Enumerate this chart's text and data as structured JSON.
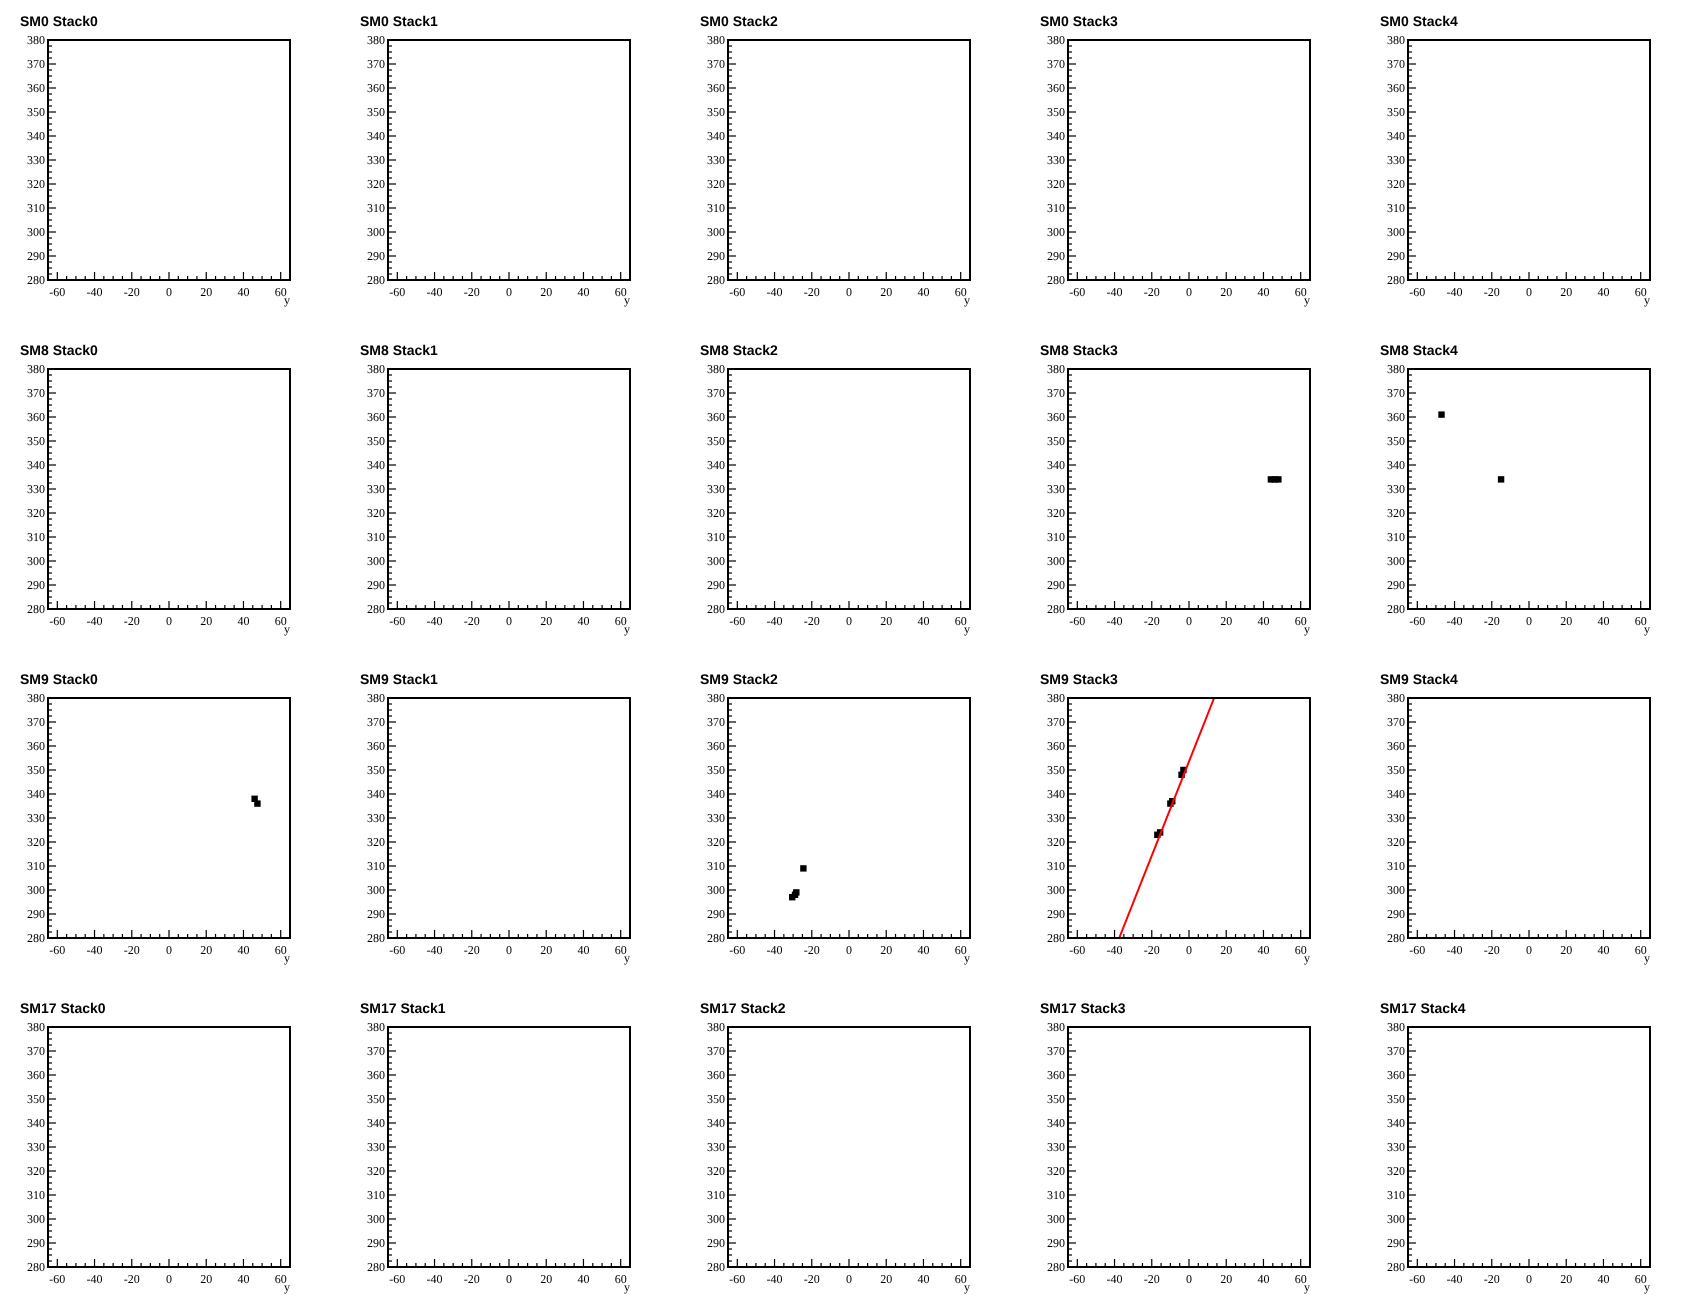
{
  "chart_data": [
    {
      "type": "scatter",
      "title": "SM0 Stack0",
      "xlabel": "y",
      "xlim": [
        -65,
        65
      ],
      "xticks": [
        -60,
        -40,
        -20,
        0,
        20,
        40,
        60
      ],
      "ylim": [
        280,
        380
      ],
      "yticks": [
        280,
        290,
        300,
        310,
        320,
        330,
        340,
        350,
        360,
        370,
        380
      ]
    },
    {
      "type": "scatter",
      "title": "SM0 Stack1",
      "xlabel": "y",
      "xlim": [
        -65,
        65
      ],
      "xticks": [
        -60,
        -40,
        -20,
        0,
        20,
        40,
        60
      ],
      "ylim": [
        280,
        380
      ],
      "yticks": [
        280,
        290,
        300,
        310,
        320,
        330,
        340,
        350,
        360,
        370,
        380
      ]
    },
    {
      "type": "scatter",
      "title": "SM0 Stack2",
      "xlabel": "y",
      "xlim": [
        -65,
        65
      ],
      "xticks": [
        -60,
        -40,
        -20,
        0,
        20,
        40,
        60
      ],
      "ylim": [
        280,
        380
      ],
      "yticks": [
        280,
        290,
        300,
        310,
        320,
        330,
        340,
        350,
        360,
        370,
        380
      ]
    },
    {
      "type": "scatter",
      "title": "SM0 Stack3",
      "xlabel": "y",
      "xlim": [
        -65,
        65
      ],
      "xticks": [
        -60,
        -40,
        -20,
        0,
        20,
        40,
        60
      ],
      "ylim": [
        280,
        380
      ],
      "yticks": [
        280,
        290,
        300,
        310,
        320,
        330,
        340,
        350,
        360,
        370,
        380
      ]
    },
    {
      "type": "scatter",
      "title": "SM0 Stack4",
      "xlabel": "y",
      "xlim": [
        -65,
        65
      ],
      "xticks": [
        -60,
        -40,
        -20,
        0,
        20,
        40,
        60
      ],
      "ylim": [
        280,
        380
      ],
      "yticks": [
        280,
        290,
        300,
        310,
        320,
        330,
        340,
        350,
        360,
        370,
        380
      ]
    },
    {
      "type": "scatter",
      "title": "SM8 Stack0",
      "xlabel": "y",
      "xlim": [
        -65,
        65
      ],
      "xticks": [
        -60,
        -40,
        -20,
        0,
        20,
        40,
        60
      ],
      "ylim": [
        280,
        380
      ],
      "yticks": [
        280,
        290,
        300,
        310,
        320,
        330,
        340,
        350,
        360,
        370,
        380
      ]
    },
    {
      "type": "scatter",
      "title": "SM8 Stack1",
      "xlabel": "y",
      "xlim": [
        -65,
        65
      ],
      "xticks": [
        -60,
        -40,
        -20,
        0,
        20,
        40,
        60
      ],
      "ylim": [
        280,
        380
      ],
      "yticks": [
        280,
        290,
        300,
        310,
        320,
        330,
        340,
        350,
        360,
        370,
        380
      ]
    },
    {
      "type": "scatter",
      "title": "SM8 Stack2",
      "xlabel": "y",
      "xlim": [
        -65,
        65
      ],
      "xticks": [
        -60,
        -40,
        -20,
        0,
        20,
        40,
        60
      ],
      "ylim": [
        280,
        380
      ],
      "yticks": [
        280,
        290,
        300,
        310,
        320,
        330,
        340,
        350,
        360,
        370,
        380
      ]
    },
    {
      "type": "scatter",
      "title": "SM8 Stack3",
      "xlabel": "y",
      "xlim": [
        -65,
        65
      ],
      "xticks": [
        -60,
        -40,
        -20,
        0,
        20,
        40,
        60
      ],
      "ylim": [
        280,
        380
      ],
      "yticks": [
        280,
        290,
        300,
        310,
        320,
        330,
        340,
        350,
        360,
        370,
        380
      ],
      "marker": "square",
      "series": [
        {
          "color": "#000000",
          "x": [
            44,
            46,
            48
          ],
          "values": [
            334,
            334,
            334
          ]
        }
      ]
    },
    {
      "type": "scatter",
      "title": "SM8 Stack4",
      "xlabel": "y",
      "xlim": [
        -65,
        65
      ],
      "xticks": [
        -60,
        -40,
        -20,
        0,
        20,
        40,
        60
      ],
      "ylim": [
        280,
        380
      ],
      "yticks": [
        280,
        290,
        300,
        310,
        320,
        330,
        340,
        350,
        360,
        370,
        380
      ],
      "marker": "square",
      "series": [
        {
          "color": "#000000",
          "x": [
            -47,
            -15
          ],
          "values": [
            361,
            334
          ]
        }
      ]
    },
    {
      "type": "scatter",
      "title": "SM9 Stack0",
      "xlabel": "y",
      "xlim": [
        -65,
        65
      ],
      "xticks": [
        -60,
        -40,
        -20,
        0,
        20,
        40,
        60
      ],
      "ylim": [
        280,
        380
      ],
      "yticks": [
        280,
        290,
        300,
        310,
        320,
        330,
        340,
        350,
        360,
        370,
        380
      ],
      "marker": "square",
      "series": [
        {
          "color": "#000000",
          "x": [
            46,
            47.5
          ],
          "values": [
            338,
            336
          ]
        }
      ]
    },
    {
      "type": "scatter",
      "title": "SM9 Stack1",
      "xlabel": "y",
      "xlim": [
        -65,
        65
      ],
      "xticks": [
        -60,
        -40,
        -20,
        0,
        20,
        40,
        60
      ],
      "ylim": [
        280,
        380
      ],
      "yticks": [
        280,
        290,
        300,
        310,
        320,
        330,
        340,
        350,
        360,
        370,
        380
      ]
    },
    {
      "type": "scatter",
      "title": "SM9 Stack2",
      "xlabel": "y",
      "xlim": [
        -65,
        65
      ],
      "xticks": [
        -60,
        -40,
        -20,
        0,
        20,
        40,
        60
      ],
      "ylim": [
        280,
        380
      ],
      "yticks": [
        280,
        290,
        300,
        310,
        320,
        330,
        340,
        350,
        360,
        370,
        380
      ],
      "marker": "square",
      "series": [
        {
          "color": "#000000",
          "x": [
            -30.5,
            -29,
            -28.3,
            -24.5
          ],
          "values": [
            297,
            298,
            299,
            309
          ]
        }
      ]
    },
    {
      "type": "scatter",
      "title": "SM9 Stack3",
      "xlabel": "y",
      "xlim": [
        -65,
        65
      ],
      "xticks": [
        -60,
        -40,
        -20,
        0,
        20,
        40,
        60
      ],
      "ylim": [
        280,
        380
      ],
      "yticks": [
        280,
        290,
        300,
        310,
        320,
        330,
        340,
        350,
        360,
        370,
        380
      ],
      "marker": "square",
      "series": [
        {
          "color": "#000000",
          "x": [
            -17,
            -15.5,
            -10,
            -9,
            -4,
            -3
          ],
          "values": [
            323,
            324,
            336,
            337,
            348,
            350
          ]
        },
        {
          "type": "line",
          "color": "#ff0000",
          "marker": "none",
          "x": [
            -37.5,
            13.5
          ],
          "values": [
            280,
            380
          ]
        }
      ]
    },
    {
      "type": "scatter",
      "title": "SM9 Stack4",
      "xlabel": "y",
      "xlim": [
        -65,
        65
      ],
      "xticks": [
        -60,
        -40,
        -20,
        0,
        20,
        40,
        60
      ],
      "ylim": [
        280,
        380
      ],
      "yticks": [
        280,
        290,
        300,
        310,
        320,
        330,
        340,
        350,
        360,
        370,
        380
      ]
    },
    {
      "type": "scatter",
      "title": "SM17 Stack0",
      "xlabel": "y",
      "xlim": [
        -65,
        65
      ],
      "xticks": [
        -60,
        -40,
        -20,
        0,
        20,
        40,
        60
      ],
      "ylim": [
        280,
        380
      ],
      "yticks": [
        280,
        290,
        300,
        310,
        320,
        330,
        340,
        350,
        360,
        370,
        380
      ]
    },
    {
      "type": "scatter",
      "title": "SM17 Stack1",
      "xlabel": "y",
      "xlim": [
        -65,
        65
      ],
      "xticks": [
        -60,
        -40,
        -20,
        0,
        20,
        40,
        60
      ],
      "ylim": [
        280,
        380
      ],
      "yticks": [
        280,
        290,
        300,
        310,
        320,
        330,
        340,
        350,
        360,
        370,
        380
      ]
    },
    {
      "type": "scatter",
      "title": "SM17 Stack2",
      "xlabel": "y",
      "xlim": [
        -65,
        65
      ],
      "xticks": [
        -60,
        -40,
        -20,
        0,
        20,
        40,
        60
      ],
      "ylim": [
        280,
        380
      ],
      "yticks": [
        280,
        290,
        300,
        310,
        320,
        330,
        340,
        350,
        360,
        370,
        380
      ]
    },
    {
      "type": "scatter",
      "title": "SM17 Stack3",
      "xlabel": "y",
      "xlim": [
        -65,
        65
      ],
      "xticks": [
        -60,
        -40,
        -20,
        0,
        20,
        40,
        60
      ],
      "ylim": [
        280,
        380
      ],
      "yticks": [
        280,
        290,
        300,
        310,
        320,
        330,
        340,
        350,
        360,
        370,
        380
      ]
    },
    {
      "type": "scatter",
      "title": "SM17 Stack4",
      "xlabel": "y",
      "xlim": [
        -65,
        65
      ],
      "xticks": [
        -60,
        -40,
        -20,
        0,
        20,
        40,
        60
      ],
      "ylim": [
        280,
        380
      ],
      "yticks": [
        280,
        290,
        300,
        310,
        320,
        330,
        340,
        350,
        360,
        370,
        380
      ]
    }
  ]
}
